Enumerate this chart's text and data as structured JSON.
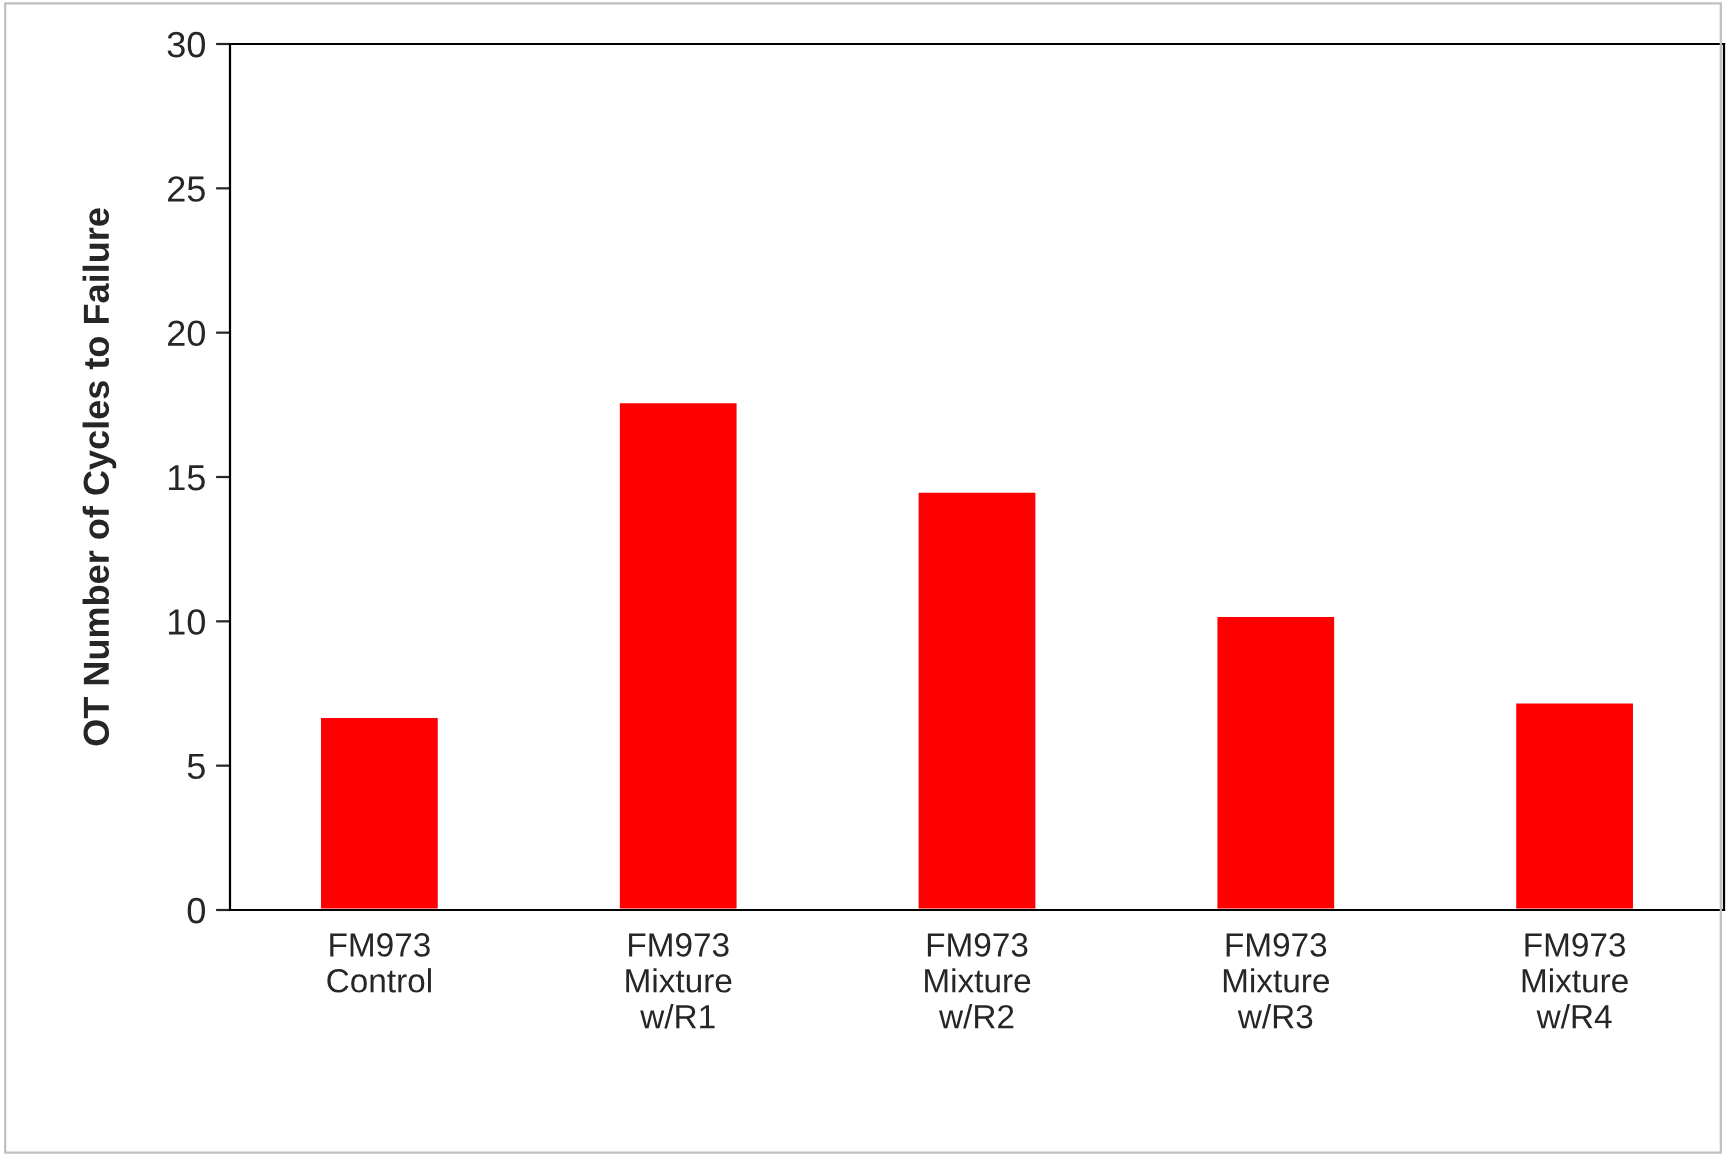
{
  "chart_data": {
    "type": "bar",
    "categories": [
      "FM973\nControl",
      "FM973\nMixture\nw/R1",
      "FM973\nMixture\nw/R2",
      "FM973\nMixture\nw/R3",
      "FM973\nMixture\nw/R4"
    ],
    "values": [
      6.7,
      17.6,
      14.5,
      10.2,
      7.2
    ],
    "color": "#ff0000",
    "ylabel": "OT Number of Cycles to Failure",
    "ylim": [
      0,
      30
    ],
    "yticks": [
      0,
      5,
      10,
      15,
      20,
      25,
      30
    ],
    "grid": false,
    "legend": false
  }
}
